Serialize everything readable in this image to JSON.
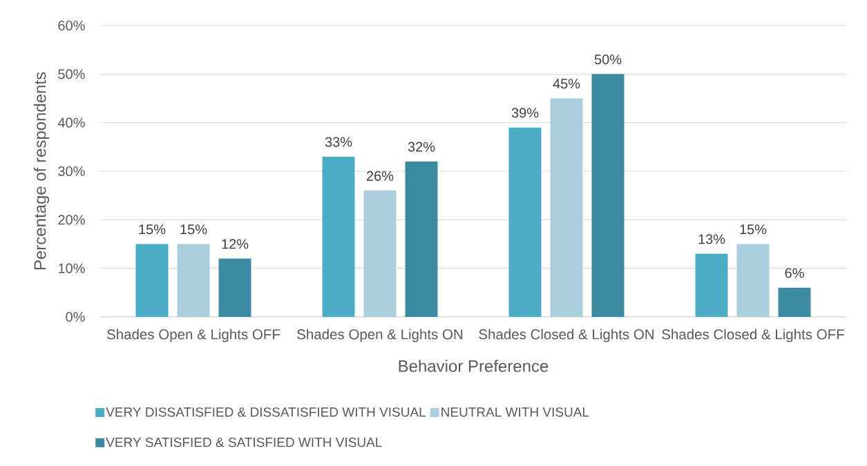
{
  "chart_data": {
    "type": "bar",
    "xlabel": "Behavior Preference",
    "ylabel": "Percentage of respondents",
    "categories": [
      "Shades Open & Lights OFF",
      "Shades Open & Lights ON",
      "Shades Closed & Lights ON",
      "Shades Closed & Lights OFF"
    ],
    "series": [
      {
        "name": "VERY DISSATISFIED & DISSATISFIED WITH VISUAL",
        "color": "#4bacc6",
        "values": [
          15,
          33,
          39,
          13
        ],
        "value_labels": [
          "15%",
          "33%",
          "39%",
          "13%"
        ]
      },
      {
        "name": "NEUTRAL WITH VISUAL",
        "color": "#aacedc",
        "values": [
          15,
          26,
          45,
          15
        ],
        "value_labels": [
          "15%",
          "26%",
          "45%",
          "15%"
        ]
      },
      {
        "name": "VERY SATISFIED & SATISFIED WITH VISUAL",
        "color": "#3c8ba2",
        "values": [
          12,
          32,
          50,
          6
        ],
        "value_labels": [
          "12%",
          "32%",
          "50%",
          "6%"
        ]
      }
    ],
    "ylim": [
      0,
      60
    ],
    "yticks": [
      {
        "value": 0,
        "label": "0%"
      },
      {
        "value": 10,
        "label": "10%"
      },
      {
        "value": 20,
        "label": "20%"
      },
      {
        "value": 30,
        "label": "30%"
      },
      {
        "value": 40,
        "label": "40%"
      },
      {
        "value": 50,
        "label": "50%"
      },
      {
        "value": 60,
        "label": "60%"
      }
    ],
    "grid": "y",
    "legend": "bottom"
  }
}
